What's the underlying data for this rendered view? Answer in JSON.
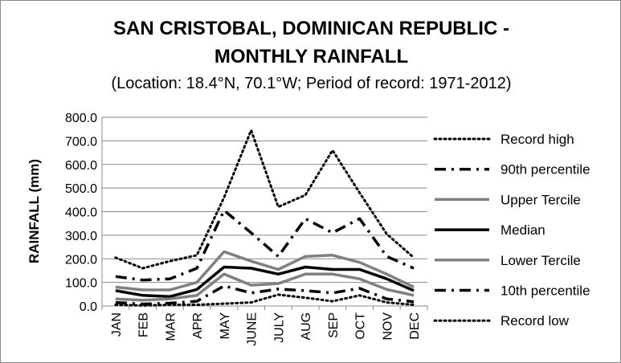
{
  "chart_data": {
    "type": "line",
    "title": "SAN CRISTOBAL, DOMINICAN REPUBLIC -",
    "title_line2": "MONTHLY RAINFALL",
    "subtitle": "(Location: 18.4°N, 70.1°W; Period of record: 1971-2012)",
    "ylabel": "RAINFALL (mm)",
    "xlabel": "",
    "ylim": [
      0,
      800
    ],
    "yticks": [
      "0.0",
      "100.0",
      "200.0",
      "300.0",
      "400.0",
      "500.0",
      "600.0",
      "700.0",
      "800.0"
    ],
    "categories": [
      "JAN",
      "FEB",
      "MAR",
      "APR",
      "MAY",
      "JUNE",
      "JULY",
      "AUG",
      "SEP",
      "OCT",
      "NOV",
      "DEC"
    ],
    "grid": true,
    "legend_position": "right",
    "series": [
      {
        "name": "Record high",
        "color": "#000000",
        "style": "dotted",
        "values": [
          205,
          160,
          190,
          215,
          460,
          745,
          420,
          470,
          660,
          480,
          305,
          205
        ]
      },
      {
        "name": "90th percentile",
        "color": "#000000",
        "style": "dashdot",
        "values": [
          125,
          110,
          115,
          160,
          405,
          310,
          210,
          370,
          310,
          370,
          210,
          160
        ]
      },
      {
        "name": "Upper Tercile",
        "color": "#808080",
        "style": "solid",
        "values": [
          80,
          68,
          68,
          100,
          230,
          190,
          155,
          210,
          215,
          185,
          135,
          80
        ]
      },
      {
        "name": "Median",
        "color": "#000000",
        "style": "solid-bold",
        "values": [
          65,
          45,
          40,
          70,
          165,
          160,
          135,
          165,
          155,
          155,
          115,
          65
        ]
      },
      {
        "name": "Lower Tercile",
        "color": "#808080",
        "style": "solid",
        "values": [
          30,
          25,
          30,
          45,
          135,
          88,
          95,
          135,
          135,
          115,
          70,
          45
        ]
      },
      {
        "name": "10th percentile",
        "color": "#000000",
        "style": "dashdot",
        "values": [
          15,
          8,
          12,
          20,
          85,
          55,
          72,
          65,
          55,
          75,
          30,
          18
        ]
      },
      {
        "name": "Record low",
        "color": "#000000",
        "style": "dotted",
        "values": [
          5,
          2,
          5,
          5,
          10,
          15,
          48,
          35,
          20,
          45,
          15,
          5
        ]
      }
    ]
  }
}
